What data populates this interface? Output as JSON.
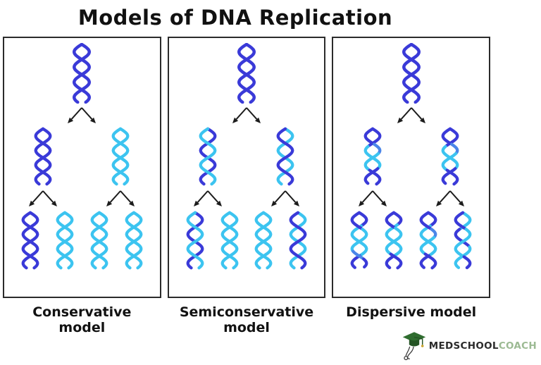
{
  "title": "Models of DNA Replication",
  "colors": {
    "dark": "#3a3ad8",
    "light": "#3cc4f0",
    "mid": "#4b86e8",
    "ink": "#1c1c1c",
    "border": "#2b2b2b",
    "cap_green": "#2f6d2f",
    "cap_green_dark": "#245424",
    "tassel_gold": "#c9a22a",
    "stethoscope_gray": "#3a3a3a",
    "coach_green": "#9cba93"
  },
  "logo": {
    "icon": "graduation-cap-with-stethoscope-icon",
    "brand_bold": "MEDSCHOOL",
    "brand_light": "COACH"
  },
  "panels": [
    {
      "id": "conservative",
      "label": "Conservative model",
      "gen1": [
        {
          "s1": [
            [
              "dark",
              0,
              1
            ]
          ],
          "s2": [
            [
              "dark",
              0,
              1
            ]
          ]
        }
      ],
      "gen2": [
        {
          "s1": [
            [
              "dark",
              0,
              1
            ]
          ],
          "s2": [
            [
              "dark",
              0,
              1
            ]
          ]
        },
        {
          "s1": [
            [
              "light",
              0,
              1
            ]
          ],
          "s2": [
            [
              "light",
              0,
              1
            ]
          ]
        }
      ],
      "gen3": [
        {
          "s1": [
            [
              "dark",
              0,
              1
            ]
          ],
          "s2": [
            [
              "dark",
              0,
              1
            ]
          ]
        },
        {
          "s1": [
            [
              "light",
              0,
              1
            ]
          ],
          "s2": [
            [
              "light",
              0,
              1
            ]
          ]
        },
        {
          "s1": [
            [
              "light",
              0,
              1
            ]
          ],
          "s2": [
            [
              "light",
              0,
              1
            ]
          ]
        },
        {
          "s1": [
            [
              "light",
              0,
              1
            ]
          ],
          "s2": [
            [
              "light",
              0,
              1
            ]
          ]
        }
      ]
    },
    {
      "id": "semiconservative",
      "label": "Semiconservative model",
      "gen1": [
        {
          "s1": [
            [
              "dark",
              0,
              1
            ]
          ],
          "s2": [
            [
              "dark",
              0,
              1
            ]
          ]
        }
      ],
      "gen2": [
        {
          "s1": [
            [
              "dark",
              0,
              1
            ]
          ],
          "s2": [
            [
              "light",
              0,
              1
            ]
          ]
        },
        {
          "s1": [
            [
              "light",
              0,
              1
            ]
          ],
          "s2": [
            [
              "dark",
              0,
              1
            ]
          ]
        }
      ],
      "gen3": [
        {
          "s1": [
            [
              "dark",
              0,
              1
            ]
          ],
          "s2": [
            [
              "light",
              0,
              1
            ]
          ]
        },
        {
          "s1": [
            [
              "light",
              0,
              1
            ]
          ],
          "s2": [
            [
              "light",
              0,
              1
            ]
          ]
        },
        {
          "s1": [
            [
              "light",
              0,
              1
            ]
          ],
          "s2": [
            [
              "light",
              0,
              1
            ]
          ]
        },
        {
          "s1": [
            [
              "light",
              0,
              1
            ]
          ],
          "s2": [
            [
              "dark",
              0,
              1
            ]
          ]
        }
      ]
    },
    {
      "id": "dispersive",
      "label": "Dispersive model",
      "gen1": [
        {
          "s1": [
            [
              "dark",
              0,
              1
            ]
          ],
          "s2": [
            [
              "dark",
              0,
              1
            ]
          ]
        }
      ],
      "gen2": [
        {
          "s1": [
            [
              "dark",
              0,
              0.32
            ],
            [
              "light",
              0.32,
              0.72
            ],
            [
              "dark",
              0.72,
              1
            ]
          ],
          "s2": [
            [
              "dark",
              0,
              0.28
            ],
            [
              "mid",
              0.28,
              0.45
            ],
            [
              "light",
              0.45,
              0.75
            ],
            [
              "dark",
              0.75,
              1
            ]
          ]
        },
        {
          "s1": [
            [
              "dark",
              0,
              0.32
            ],
            [
              "light",
              0.32,
              0.72
            ],
            [
              "dark",
              0.72,
              1
            ]
          ],
          "s2": [
            [
              "dark",
              0,
              0.28
            ],
            [
              "mid",
              0.28,
              0.45
            ],
            [
              "light",
              0.45,
              0.75
            ],
            [
              "dark",
              0.75,
              1
            ]
          ]
        }
      ],
      "gen3": [
        {
          "s1": [
            [
              "dark",
              0,
              0.24
            ],
            [
              "light",
              0.24,
              0.78
            ],
            [
              "dark",
              0.78,
              1
            ]
          ],
          "s2": [
            [
              "dark",
              0,
              0.3
            ],
            [
              "light",
              0.3,
              0.7
            ],
            [
              "mid",
              0.7,
              0.84
            ],
            [
              "dark",
              0.84,
              1
            ]
          ]
        },
        {
          "s1": [
            [
              "dark",
              0,
              0.22
            ],
            [
              "light",
              0.22,
              0.8
            ],
            [
              "dark",
              0.8,
              1
            ]
          ],
          "s2": [
            [
              "dark",
              0,
              0.28
            ],
            [
              "light",
              0.28,
              0.75
            ],
            [
              "dark",
              0.75,
              1
            ]
          ]
        },
        {
          "s1": [
            [
              "dark",
              0,
              0.24
            ],
            [
              "light",
              0.24,
              0.78
            ],
            [
              "dark",
              0.78,
              1
            ]
          ],
          "s2": [
            [
              "dark",
              0,
              0.3
            ],
            [
              "mid",
              0.3,
              0.45
            ],
            [
              "light",
              0.45,
              0.75
            ],
            [
              "dark",
              0.75,
              1
            ]
          ]
        },
        {
          "s1": [
            [
              "light",
              0,
              0.3
            ],
            [
              "dark",
              0.3,
              0.62
            ],
            [
              "light",
              0.62,
              1
            ]
          ],
          "s2": [
            [
              "dark",
              0,
              0.3
            ],
            [
              "light",
              0.3,
              0.8
            ],
            [
              "dark",
              0.8,
              1
            ]
          ]
        }
      ]
    }
  ]
}
